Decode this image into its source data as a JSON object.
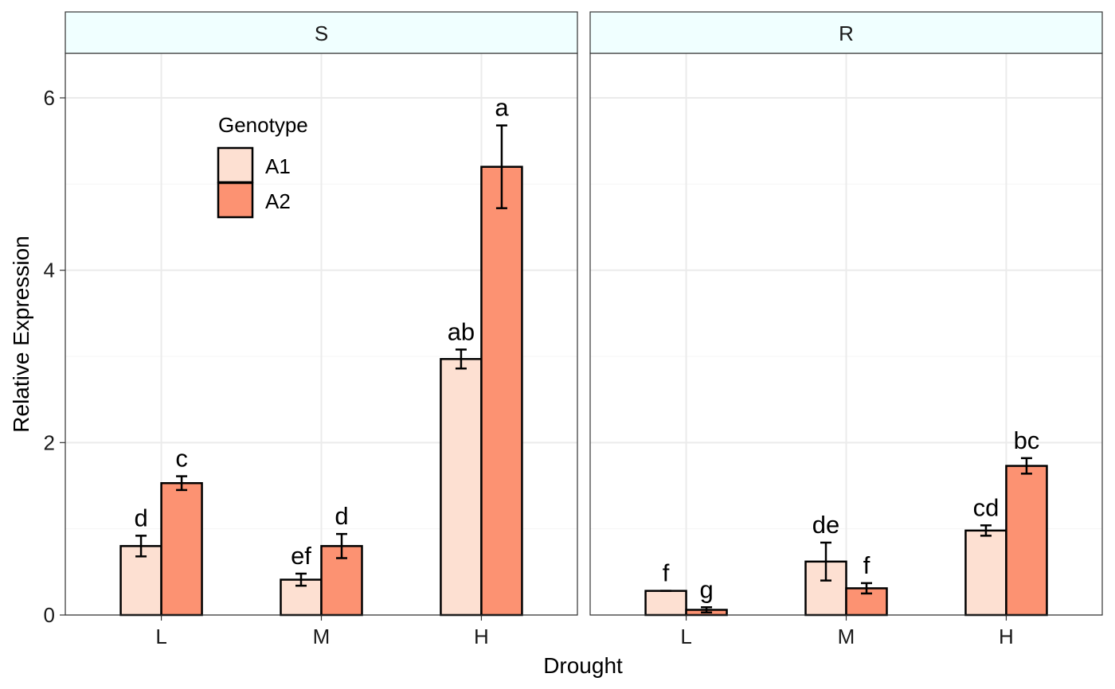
{
  "chart_data": {
    "type": "bar",
    "xlabel": "Drought",
    "ylabel": "Relative Expression",
    "categories": [
      "L",
      "M",
      "H"
    ],
    "ylim": [
      0,
      6.5
    ],
    "yticks": [
      0,
      2,
      4,
      6
    ],
    "grid": true,
    "legend": {
      "title": "Genotype",
      "placement": "top-left inside panel S",
      "entries": [
        {
          "name": "A1",
          "color": "#fde0d2"
        },
        {
          "name": "A2",
          "color": "#fc9272"
        }
      ]
    },
    "panels": [
      {
        "label": "S",
        "series": [
          {
            "name": "A1",
            "values": [
              0.8,
              0.41,
              2.97
            ],
            "errors": [
              0.12,
              0.07,
              0.11
            ],
            "letters": [
              "d",
              "ef",
              "ab"
            ]
          },
          {
            "name": "A2",
            "values": [
              1.53,
              0.8,
              5.2
            ],
            "errors": [
              0.08,
              0.14,
              0.48
            ],
            "letters": [
              "c",
              "d",
              "a"
            ]
          }
        ]
      },
      {
        "label": "R",
        "series": [
          {
            "name": "A1",
            "values": [
              0.28,
              0.62,
              0.98
            ],
            "errors": [
              0.0,
              0.22,
              0.06
            ],
            "letters": [
              "f",
              "de",
              "cd"
            ]
          },
          {
            "name": "A2",
            "values": [
              0.06,
              0.31,
              1.73
            ],
            "errors": [
              0.03,
              0.06,
              0.09
            ],
            "letters": [
              "g",
              "f",
              "bc"
            ]
          }
        ]
      }
    ]
  }
}
